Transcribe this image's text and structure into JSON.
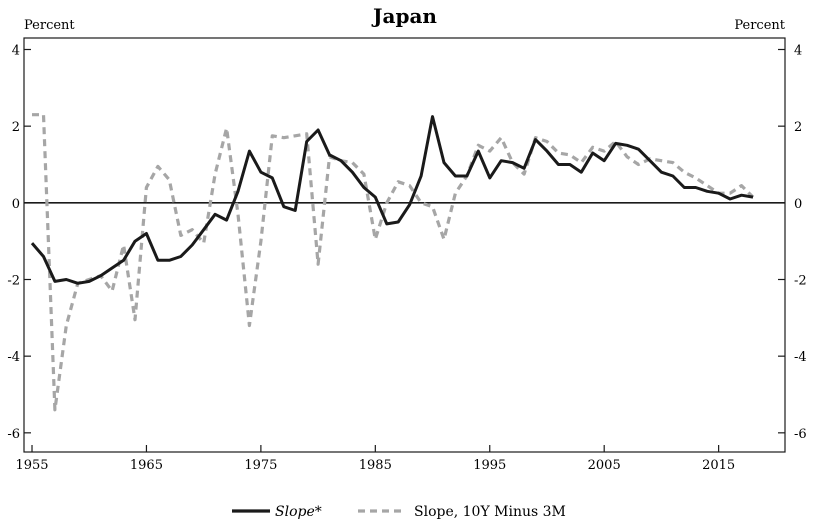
{
  "chart_data": {
    "type": "line",
    "title": "Japan",
    "ylabel_left": "Percent",
    "ylabel_right": "Percent",
    "xlim": [
      1954.3,
      2020.8
    ],
    "ylim": [
      -6.5,
      4.3
    ],
    "x_ticks": [
      1955,
      1965,
      1975,
      1985,
      1995,
      2005,
      2015
    ],
    "x_tick_labels": [
      "1955",
      "1965",
      "1975",
      "1985",
      "1995",
      "2005",
      "2015"
    ],
    "y_ticks": [
      4,
      2,
      0,
      -2,
      -4,
      -6
    ],
    "y_tick_labels": [
      "4",
      "2",
      "0",
      "-2",
      "-4",
      "-6"
    ],
    "zero_line": true,
    "grid": false,
    "legend_position": "bottom",
    "series": [
      {
        "name": "Slope*",
        "style": "solid",
        "color": "#1a1a1a",
        "x": [
          1955,
          1956,
          1957,
          1958,
          1959,
          1960,
          1961,
          1962,
          1963,
          1964,
          1965,
          1966,
          1967,
          1968,
          1969,
          1970,
          1971,
          1972,
          1973,
          1974,
          1975,
          1976,
          1977,
          1978,
          1979,
          1980,
          1981,
          1982,
          1983,
          1984,
          1985,
          1986,
          1987,
          1988,
          1989,
          1990,
          1991,
          1992,
          1993,
          1994,
          1995,
          1996,
          1997,
          1998,
          1999,
          2000,
          2001,
          2002,
          2003,
          2004,
          2005,
          2006,
          2007,
          2008,
          2009,
          2010,
          2011,
          2012,
          2013,
          2014,
          2015,
          2016,
          2017,
          2018
        ],
        "y": [
          -1.05,
          -1.4,
          -2.05,
          -2.0,
          -2.1,
          -2.05,
          -1.9,
          -1.7,
          -1.5,
          -1.0,
          -0.8,
          -1.5,
          -1.5,
          -1.4,
          -1.1,
          -0.7,
          -0.3,
          -0.45,
          0.3,
          1.35,
          0.8,
          0.65,
          -0.1,
          -0.2,
          1.6,
          1.9,
          1.25,
          1.1,
          0.8,
          0.4,
          0.15,
          -0.55,
          -0.5,
          -0.05,
          0.7,
          2.25,
          1.05,
          0.7,
          0.7,
          1.35,
          0.65,
          1.1,
          1.05,
          0.9,
          1.65,
          1.35,
          1.0,
          1.0,
          0.8,
          1.3,
          1.1,
          1.55,
          1.5,
          1.4,
          1.1,
          0.8,
          0.7,
          0.4,
          0.4,
          0.3,
          0.25,
          0.1,
          0.2,
          0.15
        ]
      },
      {
        "name": "Slope, 10Y Minus 3M",
        "style": "dashed",
        "color": "#a6a6a6",
        "x": [
          1955,
          1956,
          1957,
          1958,
          1959,
          1960,
          1961,
          1962,
          1963,
          1964,
          1965,
          1966,
          1967,
          1968,
          1969,
          1970,
          1971,
          1972,
          1973,
          1974,
          1975,
          1976,
          1977,
          1978,
          1979,
          1980,
          1981,
          1982,
          1983,
          1984,
          1985,
          1986,
          1987,
          1988,
          1989,
          1990,
          1991,
          1992,
          1993,
          1994,
          1995,
          1996,
          1997,
          1998,
          1999,
          2000,
          2001,
          2002,
          2003,
          2004,
          2005,
          2006,
          2007,
          2008,
          2009,
          2010,
          2011,
          2012,
          2013,
          2014,
          2015,
          2016,
          2017,
          2018
        ],
        "y": [
          2.3,
          2.3,
          -5.4,
          -3.2,
          -2.1,
          -2.0,
          -1.9,
          -2.3,
          -1.1,
          -3.05,
          0.4,
          0.95,
          0.6,
          -0.85,
          -0.7,
          -1.05,
          0.75,
          1.95,
          -0.3,
          -3.2,
          -1.0,
          1.75,
          1.7,
          1.75,
          1.8,
          -1.6,
          1.2,
          1.1,
          1.05,
          0.75,
          -0.95,
          0.0,
          0.55,
          0.45,
          0.0,
          -0.1,
          -0.95,
          0.25,
          0.7,
          1.5,
          1.35,
          1.7,
          1.05,
          0.75,
          1.7,
          1.6,
          1.3,
          1.25,
          1.05,
          1.45,
          1.35,
          1.6,
          1.2,
          1.0,
          1.15,
          1.1,
          1.05,
          0.8,
          0.65,
          0.45,
          0.25,
          0.25,
          0.45,
          0.15
        ]
      }
    ]
  }
}
